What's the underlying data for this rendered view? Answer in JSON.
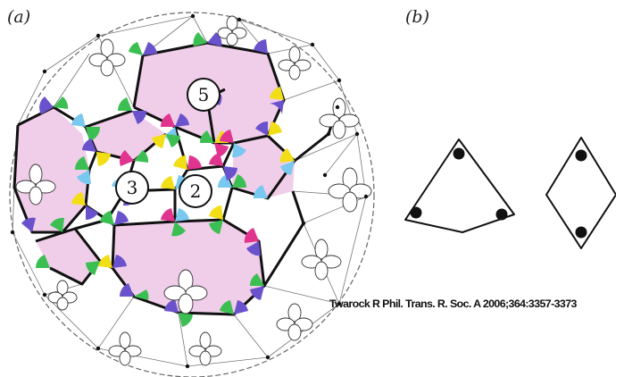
{
  "panel_labels": {
    "a": "(a)",
    "b": "(b)"
  },
  "marked_numbers": [
    "5",
    "3",
    "2"
  ],
  "citation": "Twarock R Phil. Trans. R. Soc. A 2006;364:3357-3373",
  "colors": {
    "tile_fill": "#f0cde9",
    "green": "#3cbf52",
    "purple": "#6a52cc",
    "yellow": "#f2de16",
    "blue": "#79c8f0",
    "magenta": "#e0348f",
    "line": "#111111"
  }
}
